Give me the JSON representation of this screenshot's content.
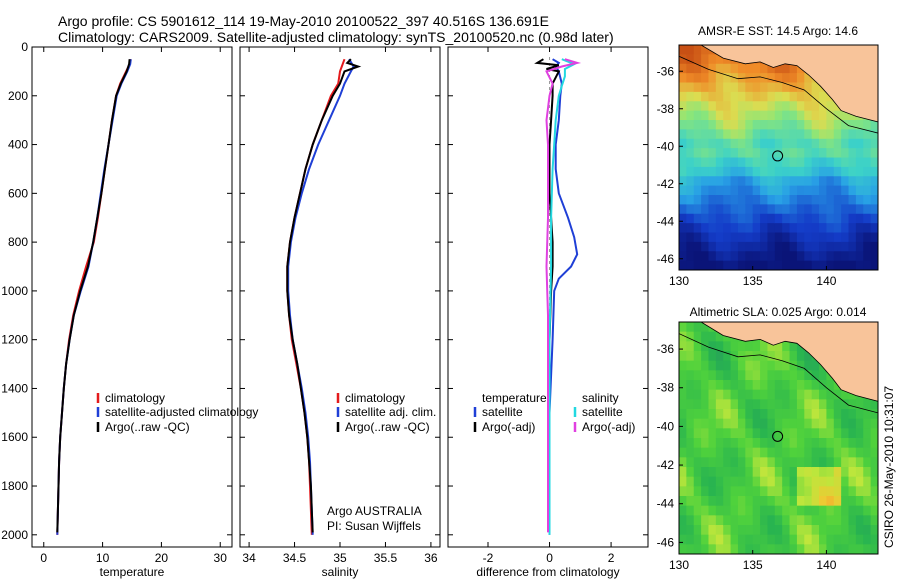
{
  "header": {
    "line1": "Argo profile: CS 5901612_114 19-May-2010 20100522_397 40.516S 136.691E",
    "line2": "Climatology: CARS2009. Satellite-adjusted climatology: synTS_20100520.nc (0.98d later)"
  },
  "watermark": "CSIRO 26-May-2010 10:31:07",
  "colors": {
    "climatology": "#e41a1c",
    "satellite": "#1f3fd6",
    "argo": "#000000",
    "salinity_sat": "#22d8e0",
    "salinity_argo": "#e040e0",
    "land": "#f8c49a"
  },
  "chart_data": [
    {
      "type": "line",
      "xlabel": "temperature",
      "ylabel": "",
      "xlim": [
        -2,
        32
      ],
      "ylim": [
        2050,
        0
      ],
      "xticks": [
        "0",
        "10",
        "20",
        "30"
      ],
      "yticks": [
        "0",
        "200",
        "400",
        "600",
        "800",
        "1000",
        "1200",
        "1400",
        "1600",
        "1800",
        "2000"
      ],
      "legend": [
        "climatology",
        "satellite-adjusted climatology",
        "Argo(..raw -QC)"
      ],
      "series": [
        {
          "name": "climatology",
          "points": [
            [
              14.8,
              50
            ],
            [
              14.6,
              70
            ],
            [
              14,
              100
            ],
            [
              13,
              150
            ],
            [
              12.3,
              200
            ],
            [
              11.6,
              300
            ],
            [
              11,
              400
            ],
            [
              10.4,
              500
            ],
            [
              9.8,
              600
            ],
            [
              9.2,
              700
            ],
            [
              8.5,
              800
            ],
            [
              7.2,
              900
            ],
            [
              6,
              1000
            ],
            [
              5,
              1100
            ],
            [
              4.3,
              1200
            ],
            [
              3.8,
              1300
            ],
            [
              3.4,
              1400
            ],
            [
              3.1,
              1500
            ],
            [
              2.8,
              1600
            ],
            [
              2.6,
              1700
            ],
            [
              2.5,
              1800
            ],
            [
              2.4,
              1900
            ],
            [
              2.3,
              2000
            ]
          ]
        },
        {
          "name": "satellite-adjusted climatology",
          "points": [
            [
              14.8,
              50
            ],
            [
              14.7,
              70
            ],
            [
              14.2,
              100
            ],
            [
              13.2,
              150
            ],
            [
              12.4,
              200
            ],
            [
              11.7,
              300
            ],
            [
              11,
              400
            ],
            [
              10.3,
              500
            ],
            [
              9.7,
              600
            ],
            [
              9.1,
              700
            ],
            [
              8.4,
              800
            ],
            [
              7.6,
              900
            ],
            [
              6.3,
              1000
            ],
            [
              5.1,
              1100
            ],
            [
              4.4,
              1200
            ],
            [
              3.8,
              1300
            ],
            [
              3.4,
              1400
            ],
            [
              3.1,
              1500
            ],
            [
              2.8,
              1600
            ],
            [
              2.6,
              1700
            ],
            [
              2.5,
              1800
            ],
            [
              2.4,
              1900
            ],
            [
              2.3,
              2000
            ]
          ]
        },
        {
          "name": "Argo(..raw -QC)",
          "points": [
            [
              14.6,
              50
            ],
            [
              14.5,
              70
            ],
            [
              14.1,
              100
            ],
            [
              13.1,
              150
            ],
            [
              12.3,
              200
            ],
            [
              11.6,
              300
            ],
            [
              11,
              400
            ],
            [
              10.4,
              500
            ],
            [
              9.8,
              600
            ],
            [
              9.1,
              700
            ],
            [
              8.4,
              800
            ],
            [
              7.5,
              900
            ],
            [
              6.2,
              1000
            ],
            [
              5.1,
              1100
            ],
            [
              4.4,
              1200
            ],
            [
              3.8,
              1300
            ],
            [
              3.4,
              1400
            ],
            [
              3.1,
              1500
            ],
            [
              2.8,
              1600
            ],
            [
              2.6,
              1700
            ],
            [
              2.5,
              1800
            ],
            [
              2.4,
              1900
            ],
            [
              2.3,
              1990
            ]
          ]
        }
      ]
    },
    {
      "type": "line",
      "xlabel": "salinity",
      "ylabel": "",
      "xlim": [
        33.9,
        36.1
      ],
      "ylim": [
        2050,
        0
      ],
      "xticks": [
        "34",
        "34.5",
        "35",
        "35.5",
        "36"
      ],
      "legend": [
        "climatology",
        "satellite adj. clim.",
        "Argo(..raw -QC)"
      ],
      "annotation": [
        "Argo AUSTRALIA",
        "PI: Susan Wijffels"
      ],
      "series": [
        {
          "name": "climatology",
          "points": [
            [
              35.05,
              50
            ],
            [
              35.02,
              80
            ],
            [
              35,
              100
            ],
            [
              34.98,
              150
            ],
            [
              34.9,
              200
            ],
            [
              34.8,
              300
            ],
            [
              34.7,
              400
            ],
            [
              34.62,
              500
            ],
            [
              34.56,
              600
            ],
            [
              34.5,
              700
            ],
            [
              34.45,
              800
            ],
            [
              34.42,
              900
            ],
            [
              34.42,
              1000
            ],
            [
              34.44,
              1100
            ],
            [
              34.47,
              1200
            ],
            [
              34.52,
              1300
            ],
            [
              34.57,
              1400
            ],
            [
              34.61,
              1500
            ],
            [
              34.64,
              1600
            ],
            [
              34.66,
              1700
            ],
            [
              34.67,
              1800
            ],
            [
              34.68,
              1900
            ],
            [
              34.69,
              2000
            ]
          ]
        },
        {
          "name": "satellite adj. clim.",
          "points": [
            [
              35.1,
              50
            ],
            [
              35.15,
              80
            ],
            [
              35.12,
              100
            ],
            [
              35.05,
              150
            ],
            [
              35,
              200
            ],
            [
              34.88,
              300
            ],
            [
              34.76,
              400
            ],
            [
              34.66,
              500
            ],
            [
              34.58,
              600
            ],
            [
              34.51,
              700
            ],
            [
              34.46,
              800
            ],
            [
              34.43,
              900
            ],
            [
              34.43,
              1000
            ],
            [
              34.45,
              1100
            ],
            [
              34.48,
              1200
            ],
            [
              34.53,
              1300
            ],
            [
              34.58,
              1400
            ],
            [
              34.62,
              1500
            ],
            [
              34.65,
              1600
            ],
            [
              34.67,
              1700
            ],
            [
              34.68,
              1800
            ],
            [
              34.69,
              1900
            ],
            [
              34.7,
              2000
            ]
          ]
        },
        {
          "name": "Argo(..raw -QC)",
          "points": [
            [
              35.12,
              50
            ],
            [
              35.08,
              65
            ],
            [
              35.2,
              80
            ],
            [
              35.05,
              100
            ],
            [
              35,
              150
            ],
            [
              34.92,
              200
            ],
            [
              34.8,
              300
            ],
            [
              34.7,
              400
            ],
            [
              34.62,
              500
            ],
            [
              34.56,
              600
            ],
            [
              34.5,
              700
            ],
            [
              34.45,
              800
            ],
            [
              34.42,
              900
            ],
            [
              34.42,
              1000
            ],
            [
              34.44,
              1100
            ],
            [
              34.48,
              1200
            ],
            [
              34.53,
              1300
            ],
            [
              34.57,
              1400
            ],
            [
              34.61,
              1500
            ],
            [
              34.64,
              1600
            ],
            [
              34.66,
              1700
            ],
            [
              34.68,
              1800
            ],
            [
              34.69,
              1900
            ],
            [
              34.7,
              1990
            ]
          ]
        }
      ]
    },
    {
      "type": "line",
      "xlabel": "difference from climatology",
      "ylabel": "",
      "xlim": [
        -3.3,
        3.2
      ],
      "ylim": [
        2050,
        0
      ],
      "xticks": [
        "-2",
        "0",
        "2"
      ],
      "legend_left_title": "temperature",
      "legend_right_title": "salinity",
      "legend": [
        "satellite",
        "Argo(-adj)",
        "satellite",
        "Argo(-adj)"
      ],
      "series": [
        {
          "name": "satellite",
          "group": "temperature",
          "points": [
            [
              0.1,
              50
            ],
            [
              0.3,
              65
            ],
            [
              0.2,
              80
            ],
            [
              0.3,
              100
            ],
            [
              0.4,
              150
            ],
            [
              0.35,
              200
            ],
            [
              0.3,
              300
            ],
            [
              0.2,
              400
            ],
            [
              0.2,
              500
            ],
            [
              0.3,
              600
            ],
            [
              0.6,
              700
            ],
            [
              0.8,
              780
            ],
            [
              0.9,
              850
            ],
            [
              0.7,
              900
            ],
            [
              0.3,
              950
            ],
            [
              0.15,
              1000
            ],
            [
              0.1,
              1200
            ],
            [
              0,
              1500
            ],
            [
              0,
              1800
            ],
            [
              0,
              2000
            ]
          ]
        },
        {
          "name": "Argo(-adj)",
          "group": "temperature",
          "points": [
            [
              -0.2,
              50
            ],
            [
              -0.4,
              65
            ],
            [
              0.3,
              75
            ],
            [
              -0.1,
              90
            ],
            [
              0.3,
              100
            ],
            [
              0.1,
              150
            ],
            [
              0.1,
              200
            ],
            [
              0.05,
              300
            ],
            [
              0,
              400
            ],
            [
              0,
              500
            ],
            [
              0,
              600
            ],
            [
              0.05,
              700
            ],
            [
              0.1,
              800
            ],
            [
              0.1,
              900
            ],
            [
              0.05,
              1000
            ],
            [
              0,
              1200
            ],
            [
              0,
              1500
            ],
            [
              0,
              1800
            ],
            [
              0,
              1990
            ]
          ]
        },
        {
          "name": "satellite",
          "group": "salinity",
          "points": [
            [
              0.4,
              50
            ],
            [
              0.8,
              70
            ],
            [
              0.5,
              90
            ],
            [
              0.5,
              120
            ],
            [
              0.4,
              160
            ],
            [
              0.3,
              200
            ],
            [
              0.2,
              300
            ],
            [
              0.15,
              400
            ],
            [
              0.1,
              500
            ],
            [
              0.05,
              700
            ],
            [
              0.05,
              900
            ],
            [
              0,
              1200
            ],
            [
              0,
              1500
            ],
            [
              0,
              1800
            ],
            [
              0,
              2000
            ]
          ]
        },
        {
          "name": "Argo(-adj)",
          "group": "salinity",
          "points": [
            [
              0.5,
              50
            ],
            [
              0.9,
              65
            ],
            [
              0.4,
              80
            ],
            [
              -0.1,
              100
            ],
            [
              0.1,
              150
            ],
            [
              0,
              200
            ],
            [
              -0.1,
              300
            ],
            [
              -0.05,
              400
            ],
            [
              -0.05,
              500
            ],
            [
              -0.05,
              700
            ],
            [
              -0.1,
              900
            ],
            [
              -0.05,
              1100
            ],
            [
              -0.05,
              1300
            ],
            [
              -0.05,
              1600
            ],
            [
              -0.05,
              1990
            ]
          ]
        }
      ]
    },
    {
      "type": "heatmap",
      "title": "AMSR-E SST: 14.5 Argo: 14.6",
      "xlim": [
        130,
        143.5
      ],
      "ylim": [
        -46.6,
        -34.6
      ],
      "xticks": [
        "130",
        "135",
        "140"
      ],
      "yticks": [
        "-36",
        "-38",
        "-40",
        "-42",
        "-44",
        "-46"
      ],
      "float_position": [
        136.691,
        -40.516
      ]
    },
    {
      "type": "heatmap",
      "title": "Altimetric SLA: 0.025 Argo: 0.014",
      "xlim": [
        130,
        143.5
      ],
      "ylim": [
        -46.6,
        -34.6
      ],
      "xticks": [
        "130",
        "135",
        "140"
      ],
      "yticks": [
        "-36",
        "-38",
        "-40",
        "-42",
        "-44",
        "-46"
      ],
      "float_position": [
        136.691,
        -40.516
      ]
    }
  ]
}
